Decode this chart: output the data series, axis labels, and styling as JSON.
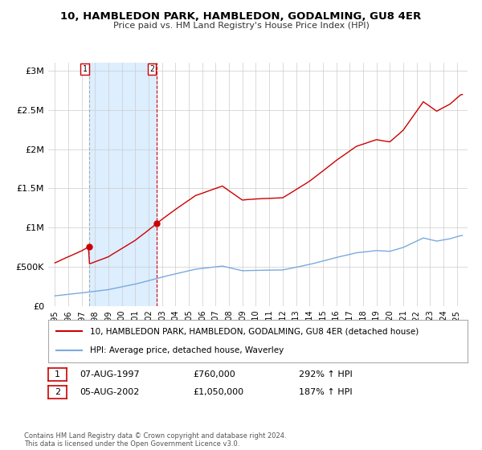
{
  "title": "10, HAMBLEDON PARK, HAMBLEDON, GODALMING, GU8 4ER",
  "subtitle": "Price paid vs. HM Land Registry's House Price Index (HPI)",
  "sale1_date": "07-AUG-1997",
  "sale1_price": 760000,
  "sale1_year": 1997.583,
  "sale2_date": "05-AUG-2002",
  "sale2_price": 1050000,
  "sale2_year": 2002.583,
  "ylabel_ticks": [
    "£0",
    "£500K",
    "£1M",
    "£1.5M",
    "£2M",
    "£2.5M",
    "£3M"
  ],
  "ylabel_values": [
    0,
    500000,
    1000000,
    1500000,
    2000000,
    2500000,
    3000000
  ],
  "xlim": [
    1994.5,
    2025.8
  ],
  "ylim": [
    0,
    3100000
  ],
  "legend_line1": "10, HAMBLEDON PARK, HAMBLEDON, GODALMING, GU8 4ER (detached house)",
  "legend_line2": "HPI: Average price, detached house, Waverley",
  "footer": "Contains HM Land Registry data © Crown copyright and database right 2024.\nThis data is licensed under the Open Government Licence v3.0.",
  "hpi_color": "#7aaadd",
  "price_color": "#cc0000",
  "bg_color": "#ffffff",
  "grid_color": "#cccccc",
  "shade_color": "#ddeeff",
  "xticks": [
    1995,
    1996,
    1997,
    1998,
    1999,
    2000,
    2001,
    2002,
    2003,
    2004,
    2005,
    2006,
    2007,
    2008,
    2009,
    2010,
    2011,
    2012,
    2013,
    2014,
    2015,
    2016,
    2017,
    2018,
    2019,
    2020,
    2021,
    2022,
    2023,
    2024,
    2025
  ],
  "sale1_label": "292% ↑ HPI",
  "sale2_label": "187% ↑ HPI"
}
